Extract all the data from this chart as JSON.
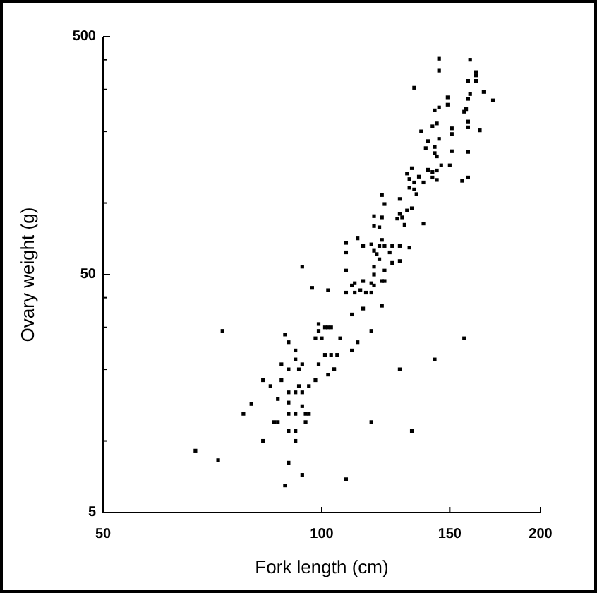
{
  "chart_data": {
    "type": "scatter",
    "xlabel": "Fork length (cm)",
    "ylabel": "Ovary weight (g)",
    "log": "xy",
    "grid": false,
    "marker": "square",
    "xlim": [
      50,
      200
    ],
    "xticks": [
      50,
      100,
      150,
      200
    ],
    "ylim": [
      5,
      500
    ],
    "yticks": [
      5,
      {
        "value": 10,
        "label": null
      },
      {
        "value": 20,
        "label": null
      },
      {
        "value": 30,
        "label": null
      },
      {
        "value": 40,
        "label": null
      },
      50,
      {
        "value": 100,
        "label": null
      },
      {
        "value": 200,
        "label": null
      },
      {
        "value": 300,
        "label": null
      },
      {
        "value": 400,
        "label": null
      },
      500
    ],
    "series": [
      {
        "color": "#000000",
        "x": [
          145,
          160,
          145,
          163,
          163,
          159,
          163,
          134,
          167,
          160,
          172,
          149,
          159,
          149,
          145,
          143,
          158,
          157,
          144,
          159,
          159,
          151,
          142,
          165,
          137,
          151,
          145,
          140,
          139,
          143,
          143,
          151,
          159,
          144,
          146,
          150,
          133,
          131,
          140,
          142,
          144,
          136,
          142,
          132,
          134,
          144,
          159,
          156,
          132,
          138,
          134,
          121,
          135,
          122,
          128,
          133,
          131,
          128,
          127,
          129,
          118,
          121,
          138,
          118,
          120,
          130,
          121,
          112,
          117,
          120,
          108,
          114,
          122,
          125,
          128,
          132,
          108,
          118,
          119,
          124,
          120,
          128,
          125,
          94,
          118,
          108,
          122,
          118,
          114,
          117,
          121,
          122,
          111,
          97,
          102,
          110,
          108,
          111,
          113,
          115,
          118,
          117,
          121,
          114,
          110,
          99,
          101,
          102,
          103,
          99,
          98,
          100,
          106,
          117,
          112,
          157,
          110,
          103,
          105,
          101,
          143,
          92,
          92,
          99,
          104,
          128,
          94,
          90,
          93,
          104,
          102,
          98,
          96,
          93,
          92,
          90,
          94,
          90,
          94,
          95,
          96,
          92,
          90,
          117,
          95,
          133,
          90,
          92,
          92,
          90,
          94,
          108,
          89,
          73,
          89,
          90,
          83,
          88,
          85,
          87,
          88,
          80,
          78,
          86,
          87,
          83,
          67,
          72
        ],
        "values": [
          404,
          400,
          360,
          355,
          344,
          326,
          326,
          305,
          293,
          287,
          270,
          278,
          274,
          259,
          252,
          245,
          248,
          242,
          216,
          220,
          208,
          206,
          210,
          202,
          200,
          195,
          186,
          182,
          170,
          172,
          162,
          165,
          164,
          157,
          144,
          144,
          140,
          133,
          138,
          135,
          137,
          129,
          128,
          126,
          122,
          125,
          128,
          124,
          116,
          122,
          114,
          108,
          109,
          99,
          104,
          95,
          93,
          90,
          86,
          87,
          88,
          87,
          82,
          80,
          79,
          81,
          70,
          71,
          67,
          66,
          68,
          66,
          66,
          66,
          66,
          65,
          62,
          63,
          61,
          62,
          58,
          57,
          56,
          54,
          54,
          52,
          52,
          50,
          47,
          46,
          47,
          47,
          46,
          44,
          43,
          45,
          42,
          42,
          43,
          42,
          45,
          42,
          37,
          36,
          34,
          31,
          30,
          30,
          30,
          29,
          27,
          27,
          27,
          29,
          26,
          27,
          24,
          23,
          23,
          23,
          22,
          24,
          22,
          21,
          20,
          20,
          21,
          20,
          20,
          20,
          19,
          18,
          17,
          17,
          16,
          16,
          16,
          14.5,
          14,
          13,
          13,
          13,
          13,
          12,
          12,
          11,
          11,
          11,
          10,
          8.1,
          7.2,
          6.9,
          6.5,
          29,
          28,
          26,
          18,
          18,
          17,
          15,
          21,
          14.3,
          13,
          12,
          12,
          10,
          9.1,
          8.3
        ]
      }
    ]
  }
}
